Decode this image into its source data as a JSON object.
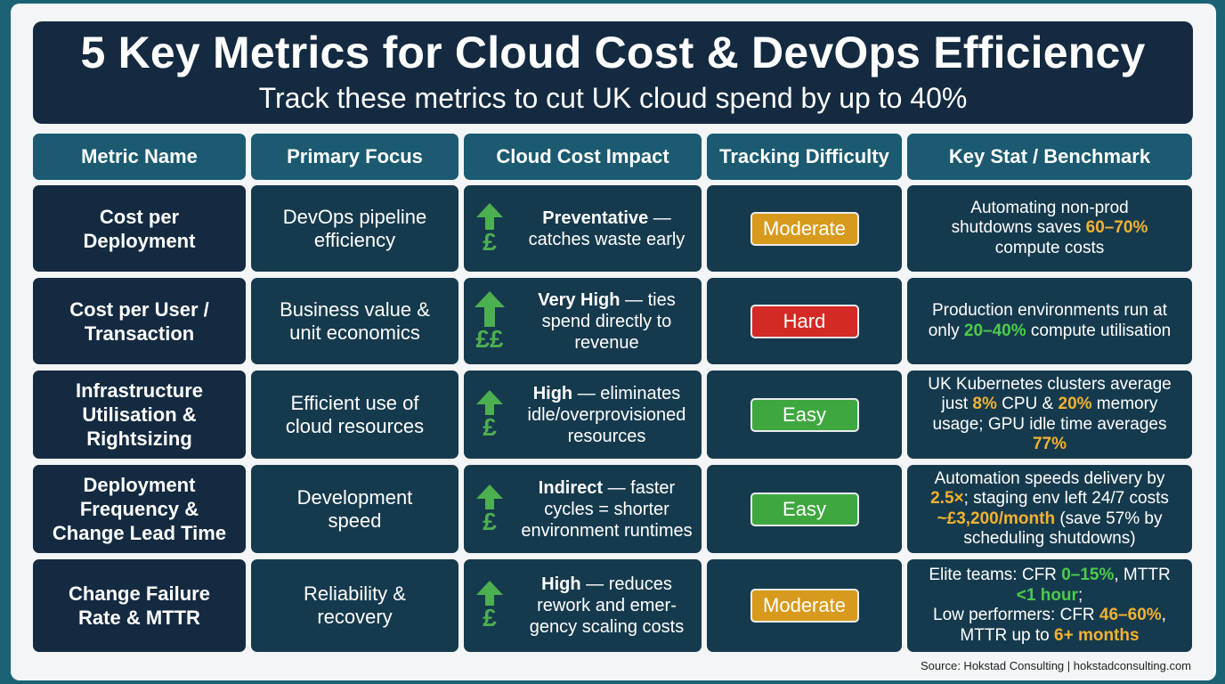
{
  "header": {
    "title": "5 Key Metrics for Cloud Cost & DevOps Efficiency",
    "subtitle": "Track these metrics to cut UK cloud spend by up to 40%"
  },
  "columns": [
    "Metric Name",
    "Primary Focus",
    "Cloud Cost Impact",
    "Tracking Difficulty",
    "Key Stat / Benchmark"
  ],
  "colors": {
    "moderate": "#d89a1c",
    "hard": "#d32a26",
    "easy": "#3ea83e",
    "gold": "#f2b231",
    "green": "#4ccb4c"
  },
  "rows": [
    {
      "metric": "Cost per Deployment",
      "focus": "DevOps pipeline efficiency",
      "impact_icon": "pound-arrow-up-icon",
      "impact_symbol": "£",
      "impact_bold": "Preventative",
      "impact_rest": " — catches waste early",
      "difficulty": "Moderate",
      "stat": {
        "a": "Automating non-prod shutdowns saves ",
        "b": "60–70%",
        "c": " compute costs"
      }
    },
    {
      "metric": "Cost per User / Transaction",
      "focus": "Business value & unit economics",
      "impact_icon": "double-pound-arrow-up-icon",
      "impact_symbol": "££",
      "impact_bold": "Very High",
      "impact_rest": " — ties spend directly to revenue",
      "difficulty": "Hard",
      "stat": {
        "a": "Production environments run at only ",
        "b": "20–40%",
        "c": " compute utilisation"
      }
    },
    {
      "metric": "Infrastructure Utilisation & Rightsizing",
      "focus": "Efficient use of cloud resources",
      "impact_icon": "pound-arrow-up-icon",
      "impact_symbol": "£",
      "impact_bold": "High",
      "impact_rest": " — eliminates idle/overprovisioned resources",
      "difficulty": "Easy",
      "stat": {
        "a": "UK Kubernetes clusters average just ",
        "b": "8%",
        "c": " CPU & ",
        "d": "20%",
        "e": " memory usage; GPU idle time averages ",
        "f": "77%"
      }
    },
    {
      "metric": "Deployment Frequency & Change Lead Time",
      "focus": "Development speed",
      "impact_icon": "pound-arrow-up-icon",
      "impact_symbol": "£",
      "impact_bold": "Indirect",
      "impact_rest": " — faster cycles = shorter environment runtimes",
      "difficulty": "Easy",
      "stat": {
        "a": "Automation speeds delivery by ",
        "b": "2.5×",
        "c": "; staging env left 24/7 costs ",
        "d": "~£3,200/month",
        "e": " (save 57% by scheduling shutdowns)"
      }
    },
    {
      "metric": "Change Failure Rate & MTTR",
      "focus": "Reliability & recovery",
      "impact_icon": "pound-arrow-up-icon",
      "impact_symbol": "£",
      "impact_bold": "High",
      "impact_rest": " — reduces rework and emer-gency scaling costs",
      "difficulty": "Moderate",
      "stat": {
        "a": "Elite teams: CFR ",
        "b": "0–15%",
        "c": ", MTTR ",
        "d": "<1 hour",
        "e": ";",
        "f": "Low performers: CFR ",
        "g": "46–60%",
        "h": ", MTTR up to ",
        "i": "6+ months"
      }
    }
  ],
  "source": "Source: Hokstad Consulting | hokstadconsulting.com"
}
